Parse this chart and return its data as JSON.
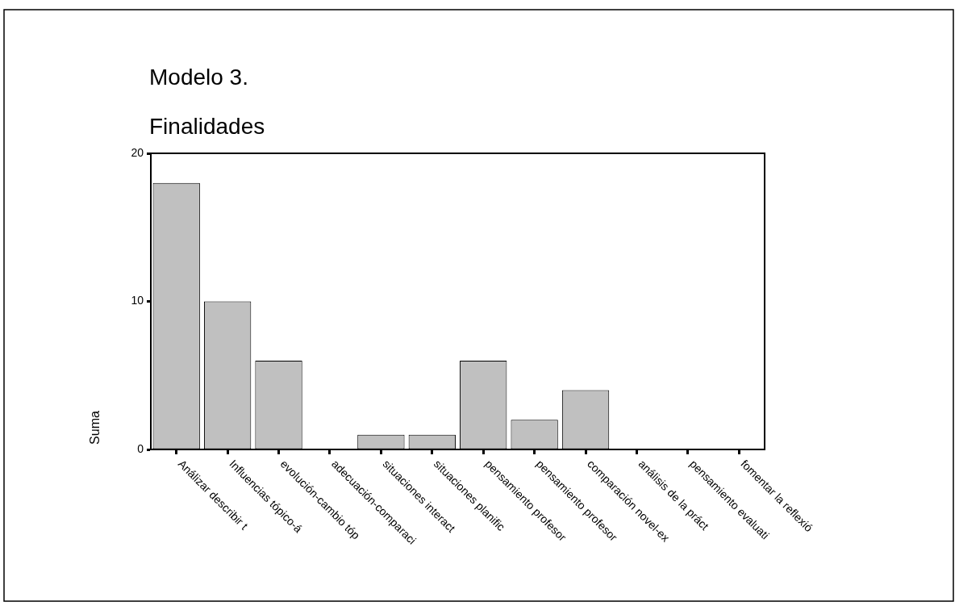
{
  "chart_data": {
    "type": "bar",
    "title": "Modelo 3.",
    "subtitle": "Finalidades",
    "ylabel": "Suma",
    "categories": [
      "Análizar describir t",
      "Influencias tópico-á",
      "evolución-cambio tóp",
      "adecuación-comparaci",
      "situaciones interact",
      "situaciones planific",
      "pensamiento profesor",
      "pensamiento profesor",
      "comparación novel-ex",
      "análisis de la práct",
      "pensamiento evaluati",
      "fomentar la reflexió"
    ],
    "values": [
      18,
      10,
      6,
      0,
      1,
      1,
      6,
      2,
      4,
      0,
      0,
      0
    ],
    "color": "#c0c0c0",
    "ylim": [
      0,
      20
    ],
    "yticks": [
      0,
      10,
      20
    ],
    "grid": false,
    "legend": false
  }
}
